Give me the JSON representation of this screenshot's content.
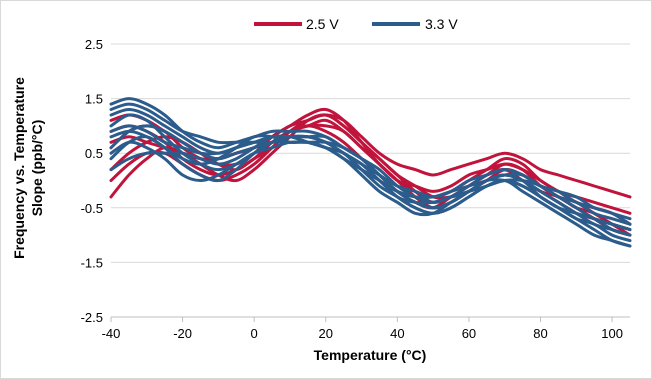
{
  "chart_data": {
    "type": "line",
    "title": "",
    "xlabel": "Temperature (°C)",
    "ylabel_line1": "Frequency vs. Temperature",
    "ylabel_line2": "Slope (ppb/°C)",
    "xlim": [
      -40,
      105
    ],
    "ylim": [
      -2.5,
      2.5
    ],
    "x_ticks": [
      -40,
      -20,
      0,
      20,
      40,
      60,
      80,
      100
    ],
    "y_ticks": [
      2.5,
      1.5,
      0.5,
      -0.5,
      -1.5,
      -2.5
    ],
    "x_tick_labels": [
      "-40",
      "-20",
      "0",
      "20",
      "40",
      "60",
      "80",
      "100"
    ],
    "y_tick_labels": [
      "2.5",
      "1.5",
      "0.5",
      "-0.5",
      "-1.5",
      "-2.5"
    ],
    "grid": "horizontal",
    "legend": "top-center",
    "x": [
      -40,
      -35,
      -30,
      -25,
      -20,
      -15,
      -10,
      -5,
      0,
      5,
      10,
      15,
      20,
      25,
      30,
      35,
      40,
      45,
      50,
      55,
      60,
      65,
      70,
      75,
      80,
      85,
      90,
      95,
      100,
      105
    ],
    "series": [
      {
        "name": "2.5 V",
        "color": "#c0143c",
        "curves": [
          [
            0.6,
            0.9,
            1.0,
            0.9,
            0.6,
            0.4,
            0.3,
            0.3,
            0.5,
            0.8,
            1.0,
            1.2,
            1.3,
            1.1,
            0.7,
            0.3,
            0.0,
            -0.2,
            -0.3,
            -0.2,
            0.0,
            0.2,
            0.4,
            0.3,
            0.0,
            -0.2,
            -0.4,
            -0.5,
            -0.6,
            -0.8
          ],
          [
            -0.3,
            0.1,
            0.4,
            0.6,
            0.5,
            0.3,
            0.1,
            0.0,
            0.2,
            0.5,
            0.8,
            1.1,
            1.2,
            1.0,
            0.7,
            0.4,
            0.1,
            -0.2,
            -0.4,
            -0.3,
            -0.1,
            0.1,
            0.3,
            0.2,
            -0.1,
            -0.3,
            -0.4,
            -0.6,
            -0.8,
            -1.0
          ],
          [
            1.1,
            1.2,
            1.1,
            0.9,
            0.7,
            0.5,
            0.4,
            0.5,
            0.6,
            0.7,
            0.9,
            1.0,
            1.1,
            0.9,
            0.6,
            0.3,
            0.0,
            -0.3,
            -0.5,
            -0.4,
            -0.2,
            0.0,
            0.2,
            0.1,
            -0.1,
            -0.3,
            -0.5,
            -0.7,
            -0.9,
            -1.0
          ],
          [
            0.2,
            0.5,
            0.7,
            0.8,
            0.7,
            0.5,
            0.3,
            0.2,
            0.4,
            0.6,
            0.9,
            1.1,
            1.2,
            1.1,
            0.8,
            0.5,
            0.3,
            0.2,
            0.1,
            0.2,
            0.3,
            0.4,
            0.5,
            0.4,
            0.2,
            0.1,
            0.0,
            -0.1,
            -0.2,
            -0.3
          ],
          [
            0.9,
            1.0,
            0.9,
            0.7,
            0.4,
            0.2,
            0.1,
            0.2,
            0.4,
            0.7,
            0.9,
            1.0,
            0.9,
            0.7,
            0.4,
            0.1,
            -0.2,
            -0.4,
            -0.5,
            -0.3,
            -0.1,
            0.1,
            0.2,
            0.0,
            -0.2,
            -0.4,
            -0.6,
            -0.7,
            -0.8,
            -0.9
          ],
          [
            0.0,
            0.3,
            0.5,
            0.5,
            0.3,
            0.1,
            0.0,
            0.1,
            0.3,
            0.6,
            0.9,
            1.0,
            1.0,
            0.9,
            0.6,
            0.3,
            0.0,
            -0.1,
            -0.2,
            -0.1,
            0.1,
            0.2,
            0.3,
            0.2,
            0.0,
            -0.2,
            -0.3,
            -0.4,
            -0.5,
            -0.6
          ],
          [
            0.7,
            0.8,
            0.7,
            0.6,
            0.5,
            0.4,
            0.4,
            0.5,
            0.6,
            0.8,
            1.0,
            1.1,
            1.2,
            1.0,
            0.7,
            0.4,
            0.1,
            -0.1,
            -0.3,
            -0.3,
            -0.2,
            0.0,
            0.1,
            0.0,
            -0.2,
            -0.3,
            -0.5,
            -0.6,
            -0.8,
            -0.9
          ]
        ]
      },
      {
        "name": "3.3 V",
        "color": "#2b5c8c",
        "curves": [
          [
            1.4,
            1.5,
            1.4,
            1.2,
            0.9,
            0.7,
            0.6,
            0.7,
            0.8,
            0.9,
            0.9,
            0.9,
            0.8,
            0.6,
            0.4,
            0.1,
            -0.2,
            -0.4,
            -0.5,
            -0.4,
            -0.2,
            0.0,
            0.1,
            0.0,
            -0.3,
            -0.5,
            -0.7,
            -0.9,
            -1.1,
            -1.2
          ],
          [
            1.2,
            1.3,
            1.2,
            1.0,
            0.8,
            0.6,
            0.5,
            0.6,
            0.7,
            0.8,
            0.8,
            0.8,
            0.7,
            0.5,
            0.3,
            0.0,
            -0.3,
            -0.5,
            -0.6,
            -0.5,
            -0.3,
            -0.1,
            0.0,
            -0.1,
            -0.3,
            -0.5,
            -0.7,
            -0.8,
            -1.0,
            -1.1
          ],
          [
            0.8,
            0.9,
            0.8,
            0.6,
            0.3,
            0.1,
            0.0,
            0.2,
            0.5,
            0.7,
            0.8,
            0.8,
            0.7,
            0.5,
            0.3,
            0.1,
            -0.1,
            -0.2,
            -0.3,
            -0.2,
            0.0,
            0.1,
            0.2,
            0.1,
            -0.1,
            -0.2,
            -0.4,
            -0.5,
            -0.6,
            -0.7
          ],
          [
            0.4,
            0.7,
            0.8,
            0.6,
            0.4,
            0.3,
            0.4,
            0.6,
            0.8,
            0.8,
            0.7,
            0.7,
            0.6,
            0.5,
            0.2,
            0.0,
            -0.2,
            -0.3,
            -0.3,
            -0.2,
            -0.1,
            0.0,
            0.1,
            0.0,
            -0.2,
            -0.4,
            -0.6,
            -0.7,
            -0.9,
            -1.0
          ],
          [
            1.0,
            1.2,
            1.1,
            0.8,
            0.5,
            0.3,
            0.2,
            0.3,
            0.5,
            0.7,
            0.8,
            0.8,
            0.8,
            0.6,
            0.4,
            0.2,
            -0.1,
            -0.3,
            -0.4,
            -0.3,
            -0.1,
            0.1,
            0.2,
            0.1,
            -0.1,
            -0.3,
            -0.5,
            -0.7,
            -0.8,
            -0.9
          ],
          [
            0.5,
            0.7,
            0.6,
            0.4,
            0.1,
            0.0,
            0.1,
            0.3,
            0.5,
            0.6,
            0.7,
            0.7,
            0.7,
            0.6,
            0.4,
            0.1,
            -0.2,
            -0.4,
            -0.5,
            -0.4,
            -0.2,
            0.0,
            0.0,
            -0.1,
            -0.3,
            -0.5,
            -0.6,
            -0.7,
            -0.8,
            -0.9
          ],
          [
            1.3,
            1.4,
            1.3,
            1.1,
            0.9,
            0.8,
            0.7,
            0.7,
            0.7,
            0.7,
            0.8,
            0.7,
            0.6,
            0.5,
            0.2,
            -0.1,
            -0.3,
            -0.5,
            -0.6,
            -0.5,
            -0.3,
            -0.1,
            0.0,
            -0.2,
            -0.4,
            -0.6,
            -0.8,
            -1.0,
            -1.1,
            -1.2
          ],
          [
            0.2,
            0.4,
            0.5,
            0.5,
            0.5,
            0.4,
            0.3,
            0.4,
            0.6,
            0.8,
            0.8,
            0.8,
            0.7,
            0.5,
            0.3,
            0.0,
            -0.2,
            -0.3,
            -0.4,
            -0.3,
            -0.2,
            0.0,
            0.1,
            0.1,
            -0.1,
            -0.2,
            -0.3,
            -0.5,
            -0.6,
            -0.8
          ],
          [
            0.9,
            1.0,
            0.9,
            0.7,
            0.6,
            0.5,
            0.5,
            0.6,
            0.7,
            0.8,
            0.8,
            0.7,
            0.6,
            0.4,
            0.1,
            -0.2,
            -0.4,
            -0.6,
            -0.6,
            -0.4,
            -0.2,
            0.0,
            0.1,
            0.0,
            -0.2,
            -0.4,
            -0.6,
            -0.8,
            -0.9,
            -1.0
          ],
          [
            0.6,
            0.9,
            1.0,
            0.9,
            0.7,
            0.5,
            0.4,
            0.5,
            0.6,
            0.7,
            0.7,
            0.7,
            0.6,
            0.4,
            0.2,
            0.0,
            -0.3,
            -0.4,
            -0.4,
            -0.3,
            -0.2,
            -0.1,
            0.0,
            0.0,
            -0.1,
            -0.3,
            -0.4,
            -0.6,
            -0.7,
            -0.8
          ]
        ]
      }
    ]
  }
}
